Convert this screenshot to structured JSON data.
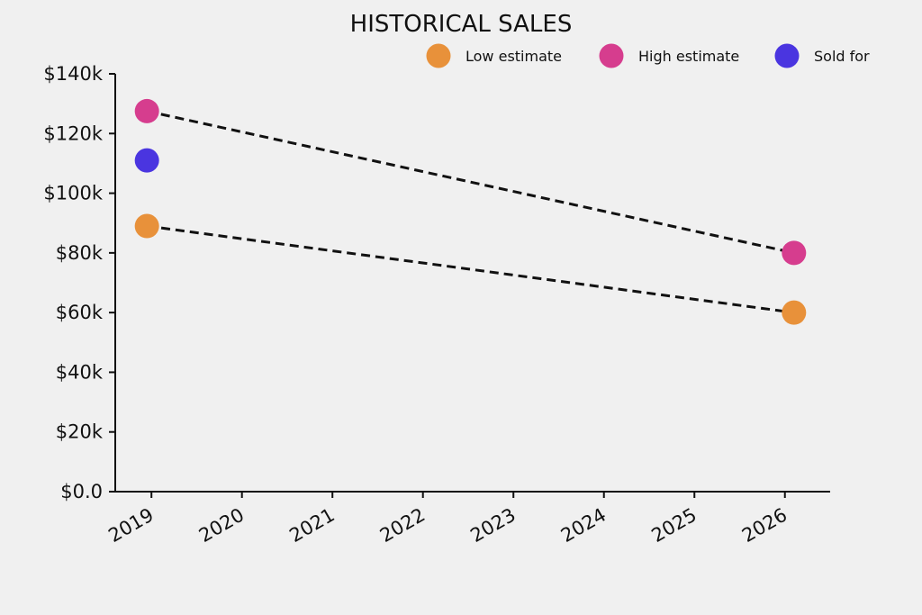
{
  "chart_data": {
    "type": "scatter",
    "title": "HISTORICAL SALES",
    "xlabel": "",
    "ylabel": "",
    "xlim": [
      2018.6,
      2026.5
    ],
    "ylim": [
      0,
      140000
    ],
    "x_ticks": [
      "2019",
      "2020",
      "2021",
      "2022",
      "2023",
      "2024",
      "2025",
      "2026"
    ],
    "y_ticks": [
      "$0.0",
      "$20k",
      "$40k",
      "$60k",
      "$80k",
      "$100k",
      "$120k",
      "$140k"
    ],
    "grid": false,
    "legend_position": "top-right",
    "series": [
      {
        "name": "Low estimate",
        "color": "#e8913a",
        "points": [
          {
            "x": 2018.95,
            "y": 89000
          },
          {
            "x": 2026.1,
            "y": 60000
          }
        ]
      },
      {
        "name": "High estimate",
        "color": "#d63d8e",
        "points": [
          {
            "x": 2018.95,
            "y": 127500
          },
          {
            "x": 2026.1,
            "y": 80000
          }
        ]
      },
      {
        "name": "Sold for",
        "color": "#4a35e0",
        "points": [
          {
            "x": 2018.95,
            "y": 111000
          }
        ]
      }
    ],
    "trend_lines": [
      {
        "series": "High estimate",
        "style": "dashed",
        "color": "#111111"
      },
      {
        "series": "Low estimate",
        "style": "dashed",
        "color": "#111111"
      }
    ]
  }
}
